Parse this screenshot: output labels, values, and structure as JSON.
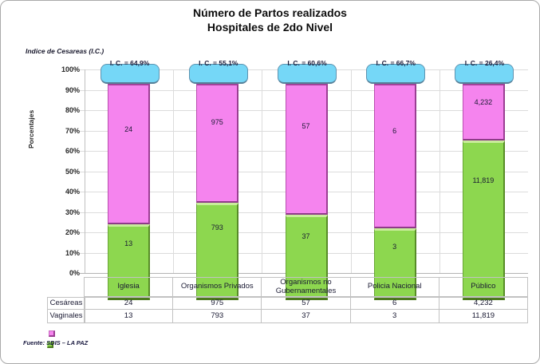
{
  "title": {
    "line1": "Número de Partos realizados",
    "line2": "Hospitales de 2do Nivel"
  },
  "cesarean_index_note": "Indice de Cesareas (I.C.)",
  "y_axis": {
    "title": "Porcentajes",
    "ticks": [
      "100%",
      "90%",
      "80%",
      "70%",
      "60%",
      "50%",
      "40%",
      "30%",
      "20%",
      "10%",
      "0%"
    ]
  },
  "table": {
    "row_labels": [
      "Cesáreas",
      "Vaginales"
    ]
  },
  "footer": {
    "source": "Fuente: SDIS – LA PAZ"
  },
  "colors": {
    "cesareas_fill": "#f584ee",
    "vaginales_fill": "#8dd74f",
    "ic_box_fill": "#75d7f7",
    "gridline": "#dcdcdc"
  },
  "chart_data": {
    "type": "bar",
    "subtype": "stacked-100-percent",
    "title": "Número de Partos realizados — Hospitales de 2do Nivel",
    "ylabel": "Porcentajes",
    "ylim": [
      0,
      100
    ],
    "grid": true,
    "legend_position": "bottom-left",
    "categories": [
      "Iglesia",
      "Organismos Privados",
      "Organismos no Gubernamentales",
      "Policia Nacional",
      "Público"
    ],
    "series": [
      {
        "name": "Cesáreas",
        "values": [
          24,
          975,
          57,
          6,
          4232
        ],
        "labels": [
          "24",
          "975",
          "57",
          "6",
          "4,232"
        ],
        "color": "#f584ee"
      },
      {
        "name": "Vaginales",
        "values": [
          13,
          793,
          37,
          3,
          11819
        ],
        "labels": [
          "13",
          "793",
          "37",
          "3",
          "11,819"
        ],
        "color": "#8dd74f"
      }
    ],
    "cesarean_index_values": [
      64.9,
      55.1,
      60.6,
      66.7,
      26.4
    ],
    "cesarean_index_labels": [
      "I. C. = 64,9%",
      "I. C. = 55,1%",
      "I. C. = 60,6%",
      "I. C. = 66,7%",
      "I. C. = 26,4%"
    ]
  }
}
